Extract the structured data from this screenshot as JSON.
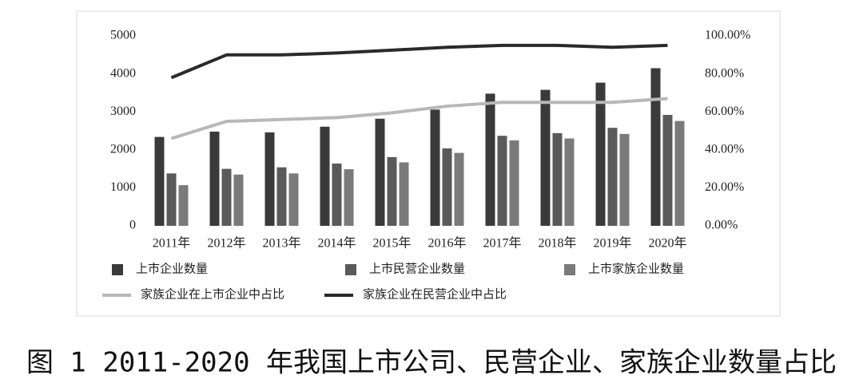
{
  "caption": "图 1 2011-2020 年我国上市公司、民营企业、家族企业数量占比",
  "chart_data": {
    "type": "bar",
    "categories": [
      "2011年",
      "2012年",
      "2013年",
      "2014年",
      "2015年",
      "2016年",
      "2017年",
      "2018年",
      "2019年",
      "2020年"
    ],
    "series": [
      {
        "name": "上市企业数量",
        "type": "bar",
        "color": "#3a3a3a",
        "values": [
          2340,
          2480,
          2460,
          2610,
          2820,
          3060,
          3480,
          3580,
          3770,
          4150
        ]
      },
      {
        "name": "上市民营企业数量",
        "type": "bar",
        "color": "#5a5a5a",
        "values": [
          1380,
          1500,
          1540,
          1640,
          1810,
          2040,
          2370,
          2440,
          2580,
          2920
        ]
      },
      {
        "name": "上市家族企业数量",
        "type": "bar",
        "color": "#7a7a7a",
        "values": [
          1070,
          1350,
          1380,
          1490,
          1670,
          1920,
          2250,
          2300,
          2420,
          2760
        ]
      },
      {
        "name": "家族企业在上市企业中占比",
        "type": "line",
        "axis": "y2",
        "color": "#b8b8b8",
        "values": [
          46,
          55,
          56,
          57,
          59.5,
          63,
          65,
          65,
          65,
          67
        ]
      },
      {
        "name": "家族企业在民营企业中占比",
        "type": "line",
        "axis": "y2",
        "color": "#2a2a2a",
        "values": [
          78,
          90,
          90,
          91,
          92.5,
          94,
          95,
          95,
          94,
          95
        ]
      }
    ],
    "ylim": [
      0,
      5000
    ],
    "yticks": [
      0,
      1000,
      2000,
      3000,
      4000,
      5000
    ],
    "y2lim": [
      0,
      100
    ],
    "y2ticks": [
      {
        "value": 0,
        "label": "0.00%"
      },
      {
        "value": 20,
        "label": "20.00%"
      },
      {
        "value": 40,
        "label": "40.00%"
      },
      {
        "value": 60,
        "label": "60.00%"
      },
      {
        "value": 80,
        "label": "80.00%"
      },
      {
        "value": 100,
        "label": "100.00%"
      }
    ],
    "grid": false
  }
}
